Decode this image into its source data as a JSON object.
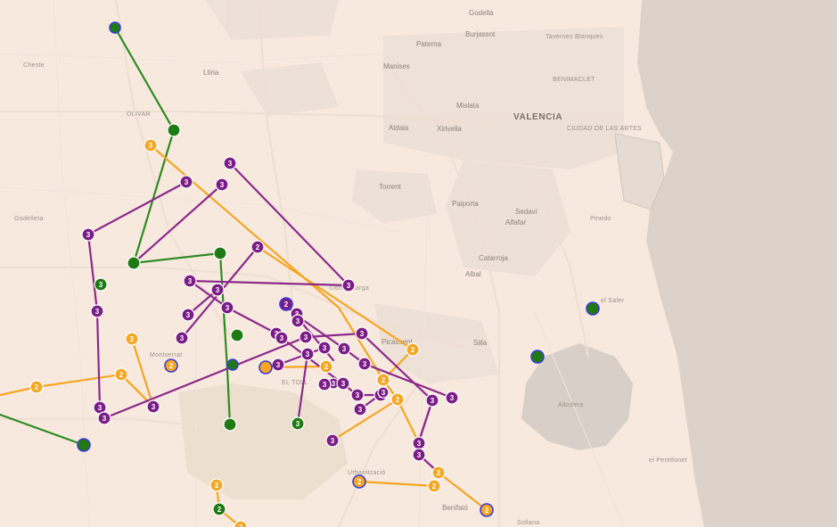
{
  "colors": {
    "land": "#f8e9df",
    "sea": "#dcd2ca",
    "lagoon": "#d8cfc8",
    "urban": "#ece0d6",
    "mountain": "#ecdfcf",
    "road": "#f3e4d9",
    "route_green": "#2e8b22",
    "route_orange": "#f5a623",
    "route_purple": "#8b2a8b",
    "marker_green": "#1f7a14",
    "marker_orange": "#f5a623",
    "marker_purple": "#7b1d86",
    "marker_outline_blue": "#3b3bd6"
  },
  "place_labels": [
    {
      "text": "Godella",
      "size": "med"
    },
    {
      "text": "Burjassot",
      "size": "med"
    },
    {
      "text": "Tavernes Blanques",
      "size": "small"
    },
    {
      "text": "Paterna",
      "size": "med"
    },
    {
      "text": "Manises",
      "size": "med"
    },
    {
      "text": "BENIMACLET",
      "size": "small"
    },
    {
      "text": "Mislata",
      "size": "med"
    },
    {
      "text": "VALENCIA",
      "size": "city"
    },
    {
      "text": "CIUDAD DE LAS ARTES",
      "size": "small"
    },
    {
      "text": "Aldaia",
      "size": "med"
    },
    {
      "text": "Xirivella",
      "size": "med"
    },
    {
      "text": "Torrent",
      "size": "med"
    },
    {
      "text": "Paiporta",
      "size": "med"
    },
    {
      "text": "Sedaví",
      "size": "med"
    },
    {
      "text": "Alfafar",
      "size": "med"
    },
    {
      "text": "Pinedo",
      "size": "small"
    },
    {
      "text": "Catarroja",
      "size": "med"
    },
    {
      "text": "Albal",
      "size": "med"
    },
    {
      "text": "el Saler",
      "size": "small"
    },
    {
      "text": "Silla",
      "size": "med"
    },
    {
      "text": "Picassent",
      "size": "med"
    },
    {
      "text": "Llíria",
      "size": "med"
    },
    {
      "text": "Cheste",
      "size": "small"
    },
    {
      "text": "OLIVAR",
      "size": "small"
    },
    {
      "text": "Godelleta",
      "size": "small"
    },
    {
      "text": "Montserrat",
      "size": "small"
    },
    {
      "text": "EL TOLL",
      "size": "small"
    },
    {
      "text": "Albufera",
      "size": "small"
    },
    {
      "text": "el Perellonet",
      "size": "small"
    },
    {
      "text": "Benifaió",
      "size": "med"
    },
    {
      "text": "Sollana",
      "size": "small"
    },
    {
      "text": "Urbanització",
      "size": "small"
    },
    {
      "text": "Lloma Llarga",
      "size": "small"
    }
  ],
  "markers": [
    {
      "label": "",
      "color": "green",
      "outline": "blue"
    },
    {
      "label": "",
      "color": "green",
      "outline": "none"
    },
    {
      "label": "3",
      "color": "orange",
      "outline": "none"
    },
    {
      "label": "3",
      "color": "purple",
      "outline": "none"
    },
    {
      "label": "3",
      "color": "purple",
      "outline": "none"
    },
    {
      "label": "3",
      "color": "purple",
      "outline": "none"
    },
    {
      "label": "3",
      "color": "purple",
      "outline": "none"
    },
    {
      "label": "",
      "color": "green",
      "outline": "none"
    },
    {
      "label": "",
      "color": "green",
      "outline": "none"
    },
    {
      "label": "3",
      "color": "green",
      "outline": "none"
    },
    {
      "label": "2",
      "color": "purple",
      "outline": "none"
    },
    {
      "label": "3",
      "color": "purple",
      "outline": "none"
    },
    {
      "label": "3",
      "color": "purple",
      "outline": "none"
    },
    {
      "label": "3",
      "color": "purple",
      "outline": "none"
    },
    {
      "label": "3",
      "color": "purple",
      "outline": "none"
    },
    {
      "label": "3",
      "color": "purple",
      "outline": "none"
    },
    {
      "label": "3",
      "color": "purple",
      "outline": "none"
    },
    {
      "label": "3",
      "color": "purple",
      "outline": "none"
    },
    {
      "label": "2",
      "color": "purple",
      "outline": "blue"
    },
    {
      "label": "3",
      "color": "purple",
      "outline": "none"
    },
    {
      "label": "3",
      "color": "purple",
      "outline": "none"
    },
    {
      "label": "",
      "color": "green",
      "outline": "none"
    },
    {
      "label": "3",
      "color": "purple",
      "outline": "none"
    },
    {
      "label": "3",
      "color": "purple",
      "outline": "none"
    },
    {
      "label": "3",
      "color": "purple",
      "outline": "none"
    },
    {
      "label": "3",
      "color": "purple",
      "outline": "none"
    },
    {
      "label": "3",
      "color": "purple",
      "outline": "none"
    },
    {
      "label": "3",
      "color": "purple",
      "outline": "none"
    },
    {
      "label": "3",
      "color": "purple",
      "outline": "none"
    },
    {
      "label": "3",
      "color": "purple",
      "outline": "none"
    },
    {
      "label": "3",
      "color": "purple",
      "outline": "none"
    },
    {
      "label": "2",
      "color": "orange",
      "outline": "none"
    },
    {
      "label": "2",
      "color": "orange",
      "outline": "none"
    },
    {
      "label": "2",
      "color": "orange",
      "outline": "blue"
    },
    {
      "label": "",
      "color": "green",
      "outline": "blue"
    },
    {
      "label": "",
      "color": "orange",
      "outline": "blue"
    },
    {
      "label": "2",
      "color": "orange",
      "outline": "none"
    },
    {
      "label": "3",
      "color": "purple",
      "outline": "none"
    },
    {
      "label": "3",
      "color": "purple",
      "outline": "none"
    },
    {
      "label": "3",
      "color": "purple",
      "outline": "none"
    },
    {
      "label": "3",
      "color": "purple",
      "outline": "none"
    },
    {
      "label": "3",
      "color": "purple",
      "outline": "none"
    },
    {
      "label": "3",
      "color": "purple",
      "outline": "none"
    },
    {
      "label": "2",
      "color": "orange",
      "outline": "none"
    },
    {
      "label": "2",
      "color": "orange",
      "outline": "none"
    },
    {
      "label": "2",
      "color": "orange",
      "outline": "none"
    },
    {
      "label": "2",
      "color": "orange",
      "outline": "none"
    },
    {
      "label": "3",
      "color": "purple",
      "outline": "none"
    },
    {
      "label": "3",
      "color": "purple",
      "outline": "none"
    },
    {
      "label": "3",
      "color": "purple",
      "outline": "none"
    },
    {
      "label": "3",
      "color": "purple",
      "outline": "none"
    },
    {
      "label": "3",
      "color": "purple",
      "outline": "none"
    },
    {
      "label": "3",
      "color": "purple",
      "outline": "none"
    },
    {
      "label": "3",
      "color": "green",
      "outline": "none"
    },
    {
      "label": "",
      "color": "green",
      "outline": "none"
    },
    {
      "label": "",
      "color": "green",
      "outline": "blue"
    },
    {
      "label": "3",
      "color": "purple",
      "outline": "none"
    },
    {
      "label": "3",
      "color": "purple",
      "outline": "none"
    },
    {
      "label": "3",
      "color": "purple",
      "outline": "none"
    },
    {
      "label": "2",
      "color": "orange",
      "outline": "none"
    },
    {
      "label": "2",
      "color": "orange",
      "outline": "blue"
    },
    {
      "label": "2",
      "color": "orange",
      "outline": "none"
    },
    {
      "label": "2",
      "color": "green",
      "outline": "none"
    },
    {
      "label": "2",
      "color": "orange",
      "outline": "blue"
    },
    {
      "label": "",
      "color": "green",
      "outline": "blue"
    },
    {
      "label": "",
      "color": "green",
      "outline": "blue"
    },
    {
      "label": "2",
      "color": "orange",
      "outline": "none"
    },
    {
      "label": "2",
      "color": "orange",
      "outline": "none"
    }
  ]
}
